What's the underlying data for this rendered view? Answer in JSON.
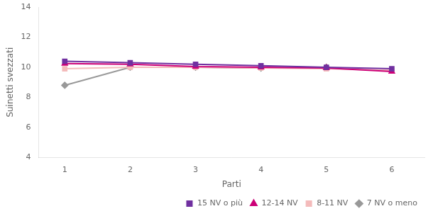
{
  "chart_data": {
    "type": "line",
    "x": [
      1,
      2,
      3,
      4,
      5,
      6
    ],
    "series": [
      {
        "name": "15 NV o più",
        "color": "#7030A0",
        "marker": "square",
        "values": [
          10.4,
          10.3,
          10.2,
          10.1,
          10.0,
          9.9
        ]
      },
      {
        "name": "12-14 NV",
        "color": "#CC0077",
        "marker": "triangle",
        "values": [
          10.25,
          10.2,
          10.05,
          10.0,
          9.95,
          9.72
        ]
      },
      {
        "name": "8-11 NV",
        "color": "#F4BBBB",
        "marker": "square",
        "values": [
          9.9,
          10.0,
          10.0,
          9.95,
          9.9,
          9.8
        ]
      },
      {
        "name": "7 NV o meno",
        "color": "#999999",
        "marker": "diamond",
        "values": [
          8.8,
          10.0,
          10.0,
          9.95,
          10.0,
          null
        ]
      }
    ],
    "xlabel": "Parti",
    "ylabel": "Suinetti svezzati",
    "xlim": [
      0.6,
      6.5
    ],
    "xticks": [
      1,
      2,
      3,
      4,
      5,
      6
    ],
    "ylim": [
      4,
      14
    ],
    "yticks": [
      4,
      6,
      8,
      10,
      12,
      14
    ],
    "grid": false,
    "legend": "lower right"
  }
}
